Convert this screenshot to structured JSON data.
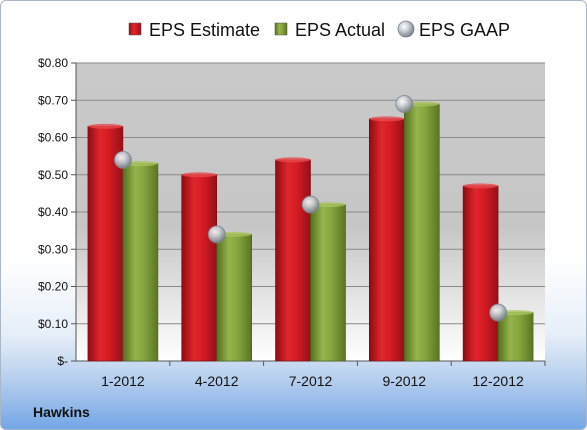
{
  "company": "Hawkins",
  "colors": {
    "estimate": "#c8161d",
    "actual": "#7a9a34",
    "gaap": "#b9bec6"
  },
  "chart_data": {
    "type": "bar",
    "categories": [
      "1-2012",
      "4-2012",
      "7-2012",
      "9-2012",
      "12-2012"
    ],
    "series": [
      {
        "name": "EPS Estimate",
        "type": "bar",
        "values": [
          0.63,
          0.5,
          0.54,
          0.65,
          0.47
        ]
      },
      {
        "name": "EPS Actual",
        "type": "bar",
        "values": [
          0.53,
          0.34,
          0.42,
          0.69,
          0.13
        ]
      },
      {
        "name": "EPS GAAP",
        "type": "scatter",
        "values": [
          0.54,
          0.34,
          0.42,
          0.69,
          0.13
        ]
      }
    ],
    "ylim": [
      0,
      0.8
    ],
    "yticks": [
      0,
      0.1,
      0.2,
      0.3,
      0.4,
      0.5,
      0.6,
      0.7,
      0.8
    ],
    "ytick_labels": [
      "$-",
      "$0.10",
      "$0.20",
      "$0.30",
      "$0.40",
      "$0.50",
      "$0.60",
      "$0.70",
      "$0.80"
    ],
    "grid": true,
    "legend": "top"
  }
}
